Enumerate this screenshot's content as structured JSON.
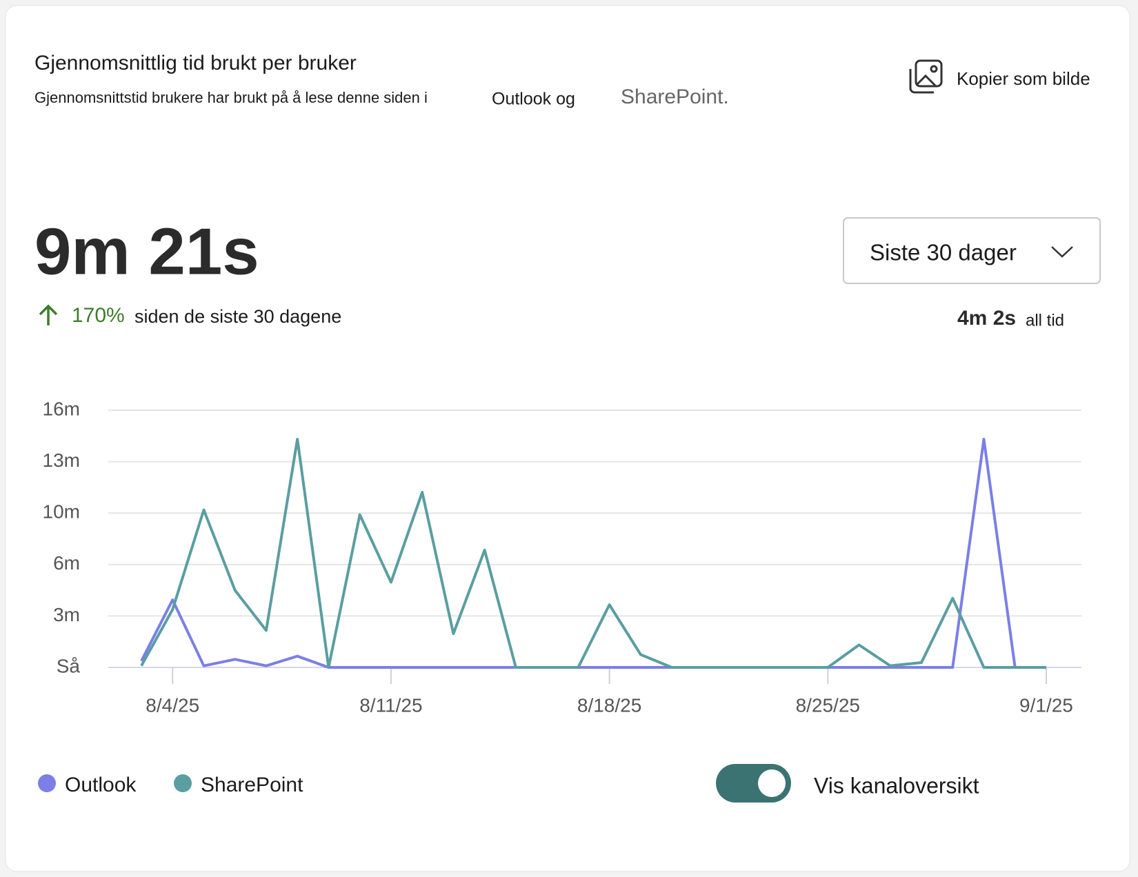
{
  "header": {
    "title": "Gjennomsnittlig tid brukt per bruker",
    "description": [
      "Gjennomsnittstid brukere har brukt på å lese denne siden i",
      "Outlook og",
      "SharePoint."
    ],
    "copy_button": "Kopier som bilde"
  },
  "stats": {
    "value": "9m 21s",
    "change": "170%",
    "change_text": "siden de siste 30 dagene",
    "period": "Siste 30 dager",
    "all_time_value": "4m 2s",
    "all_time_label": "all tid"
  },
  "toggle": {
    "label": "Vis kanaloversikt"
  },
  "chart_data": {
    "type": "line",
    "categories": [
      null,
      "8/4/25",
      null,
      null,
      null,
      null,
      null,
      null,
      "8/11/25",
      null,
      null,
      null,
      null,
      null,
      null,
      "8/18/25",
      null,
      null,
      null,
      null,
      null,
      null,
      "8/25/25",
      null,
      null,
      null,
      null,
      null,
      null,
      "9/1/25"
    ],
    "series": [
      {
        "name": "Outlook",
        "color": "#7b7fe6",
        "values": [
          0.4,
          4.2,
          0.1,
          0.5,
          0.1,
          0.7,
          0,
          0,
          0,
          0,
          0,
          0,
          0,
          0,
          0,
          0,
          0,
          0,
          0,
          0,
          0,
          0,
          0,
          0,
          0,
          0,
          0,
          14.2,
          0,
          0
        ]
      },
      {
        "name": "SharePoint",
        "color": "#5a9ea0",
        "values": [
          0.1,
          3.6,
          9.8,
          4.8,
          2.3,
          14.2,
          0,
          9.5,
          5.3,
          10.9,
          2.1,
          7.3,
          0,
          0,
          0,
          3.9,
          0.8,
          0,
          0,
          0,
          0,
          0,
          0,
          1.4,
          0.1,
          0.3,
          4.3,
          0,
          0,
          0
        ]
      }
    ],
    "ylim": [
      0,
      16
    ],
    "yticks": [
      {
        "value": 0,
        "label": "Så"
      },
      {
        "value": 3.2,
        "label": "3m"
      },
      {
        "value": 6.4,
        "label": "6m"
      },
      {
        "value": 9.6,
        "label": "10m"
      },
      {
        "value": 12.8,
        "label": "13m"
      },
      {
        "value": 16,
        "label": "16m"
      }
    ],
    "grid": true
  }
}
